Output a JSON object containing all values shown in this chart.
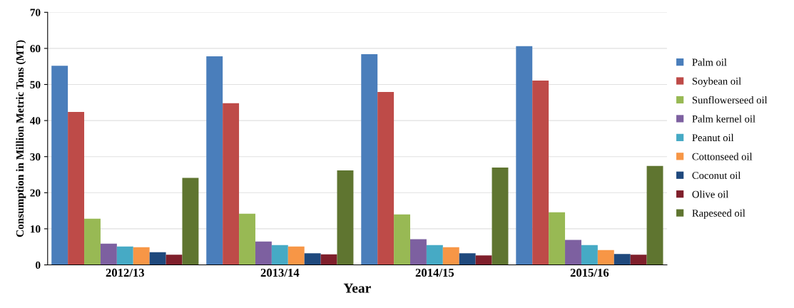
{
  "chart_data": {
    "type": "bar",
    "xlabel": "Year",
    "ylabel": "Consumption in Million Metric Tons (MT)",
    "categories": [
      "2012/13",
      "2013/14",
      "2014/15",
      "2015/16"
    ],
    "series": [
      {
        "name": "Palm oil",
        "color": "#4a7ebb",
        "values": [
          55.2,
          57.8,
          58.4,
          60.6
        ]
      },
      {
        "name": "Soybean oil",
        "color": "#be4b48",
        "values": [
          42.4,
          44.8,
          47.9,
          51.1
        ]
      },
      {
        "name": "Sunflowerseed oil",
        "color": "#98b954",
        "values": [
          12.8,
          14.2,
          14,
          14.6
        ]
      },
      {
        "name": "Palm kernel oil",
        "color": "#7d60a0",
        "values": [
          5.9,
          6.5,
          7.1,
          6.9
        ]
      },
      {
        "name": "Peanut oil",
        "color": "#46aac5",
        "values": [
          5.1,
          5.5,
          5.5,
          5.5
        ]
      },
      {
        "name": "Cottonseed oil",
        "color": "#f79646",
        "values": [
          4.9,
          5.1,
          4.9,
          4.1
        ]
      },
      {
        "name": "Coconut oil",
        "color": "#1f497d",
        "values": [
          3.5,
          3.2,
          3.2,
          3
        ]
      },
      {
        "name": "Olive oil",
        "color": "#7f1f2b",
        "values": [
          2.8,
          2.9,
          2.6,
          2.8
        ]
      },
      {
        "name": "Rapeseed oil",
        "color": "#5f7530",
        "values": [
          24.1,
          26.2,
          27,
          27.4
        ]
      }
    ],
    "ylim": [
      0,
      70
    ],
    "yticks": [
      0,
      10,
      20,
      30,
      40,
      50,
      60,
      70
    ],
    "grid": "y",
    "legend": "right"
  }
}
